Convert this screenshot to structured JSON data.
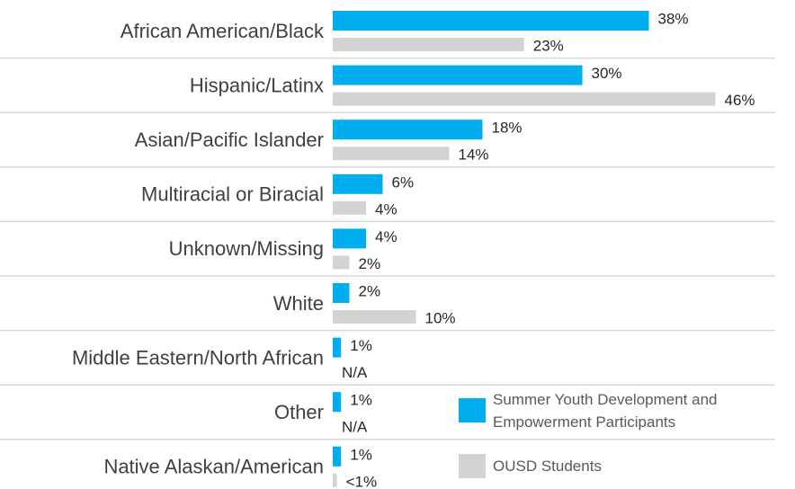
{
  "chart_data": {
    "type": "bar",
    "orientation": "horizontal",
    "categories": [
      "African American/Black",
      "Hispanic/Latinx",
      "Asian/Pacific Islander",
      "Multiracial or Biracial",
      "Unknown/Missing",
      "White",
      "Middle Eastern/North African",
      "Other",
      "Native Alaskan/American"
    ],
    "series": [
      {
        "name": "Summer Youth Development and Empowerment Participants",
        "color": "#00adef",
        "values": [
          38,
          30,
          18,
          6,
          4,
          2,
          1,
          1,
          1
        ],
        "value_labels": [
          "38%",
          "30%",
          "18%",
          "6%",
          "4%",
          "2%",
          "1%",
          "1%",
          "1%"
        ]
      },
      {
        "name": "OUSD Students",
        "color": "#d3d3d3",
        "values": [
          23,
          46,
          14,
          4,
          2,
          10,
          null,
          null,
          0.5
        ],
        "value_labels": [
          "23%",
          "46%",
          "14%",
          "4%",
          "2%",
          "10%",
          "N/A",
          "N/A",
          "<1%"
        ]
      }
    ]
  }
}
